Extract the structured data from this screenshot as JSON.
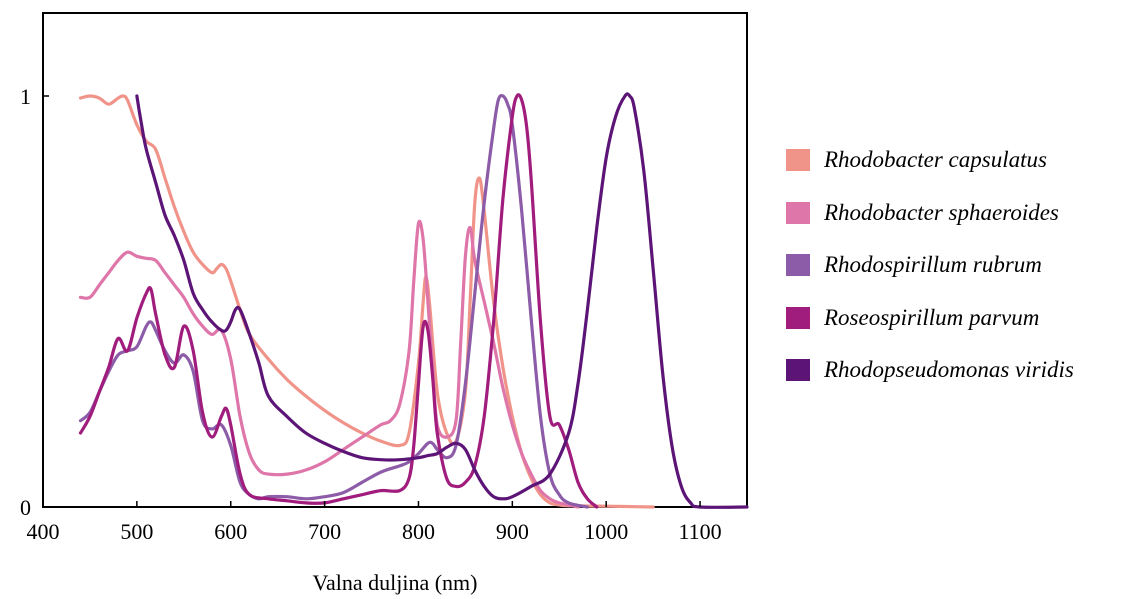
{
  "chart_data": {
    "type": "line",
    "title": "",
    "xlabel": "Valna duljina (nm)",
    "ylabel": "",
    "xlim": [
      400,
      1150
    ],
    "ylim": [
      0,
      1.2
    ],
    "xticks": [
      400,
      500,
      600,
      700,
      800,
      900,
      1000,
      1100
    ],
    "yticks": [
      0,
      1
    ],
    "ytick_labels": [
      "0",
      "1"
    ],
    "grid": false,
    "legend_position": "right",
    "series": [
      {
        "name": "Rhodobacter capsulatus",
        "color": "#f0948a",
        "x": [
          440,
          450,
          460,
          470,
          480,
          485,
          490,
          500,
          510,
          520,
          530,
          540,
          550,
          560,
          570,
          580,
          585,
          590,
          595,
          600,
          610,
          620,
          640,
          660,
          680,
          700,
          720,
          740,
          760,
          780,
          790,
          800,
          805,
          808,
          812,
          820,
          830,
          840,
          850,
          855,
          860,
          865,
          870,
          880,
          890,
          900,
          910,
          920,
          930,
          940,
          950,
          960,
          1000,
          1050
        ],
        "y": [
          0.995,
          1.0,
          0.995,
          0.98,
          0.995,
          1.0,
          0.99,
          0.93,
          0.89,
          0.87,
          0.8,
          0.73,
          0.67,
          0.62,
          0.59,
          0.57,
          0.58,
          0.59,
          0.58,
          0.55,
          0.48,
          0.42,
          0.36,
          0.31,
          0.27,
          0.235,
          0.205,
          0.18,
          0.16,
          0.15,
          0.18,
          0.35,
          0.5,
          0.56,
          0.49,
          0.28,
          0.18,
          0.16,
          0.28,
          0.5,
          0.74,
          0.8,
          0.72,
          0.5,
          0.34,
          0.22,
          0.13,
          0.07,
          0.03,
          0.01,
          0.005,
          0.003,
          0.002,
          0.0
        ]
      },
      {
        "name": "Rhodobacter sphaeroides",
        "color": "#df76aa",
        "x": [
          440,
          450,
          460,
          470,
          480,
          490,
          500,
          510,
          520,
          530,
          540,
          550,
          560,
          570,
          580,
          590,
          600,
          610,
          620,
          630,
          640,
          660,
          680,
          700,
          720,
          740,
          760,
          770,
          780,
          790,
          795,
          800,
          805,
          810,
          815,
          820,
          830,
          840,
          845,
          850,
          855,
          860,
          870,
          880,
          890,
          900,
          910,
          920,
          930,
          940,
          950,
          970
        ],
        "y": [
          0.51,
          0.51,
          0.54,
          0.57,
          0.6,
          0.62,
          0.61,
          0.605,
          0.6,
          0.57,
          0.54,
          0.51,
          0.47,
          0.44,
          0.42,
          0.43,
          0.36,
          0.22,
          0.13,
          0.09,
          0.08,
          0.08,
          0.09,
          0.11,
          0.14,
          0.17,
          0.2,
          0.21,
          0.25,
          0.38,
          0.55,
          0.69,
          0.65,
          0.5,
          0.34,
          0.2,
          0.17,
          0.21,
          0.4,
          0.61,
          0.68,
          0.6,
          0.5,
          0.4,
          0.29,
          0.2,
          0.13,
          0.08,
          0.04,
          0.02,
          0.01,
          0.0
        ]
      },
      {
        "name": "Rhodospirillum rubrum",
        "color": "#8c5ca8",
        "x": [
          440,
          450,
          460,
          470,
          480,
          490,
          500,
          510,
          515,
          520,
          530,
          540,
          550,
          560,
          570,
          580,
          590,
          600,
          610,
          620,
          630,
          640,
          660,
          680,
          700,
          720,
          740,
          760,
          780,
          790,
          800,
          810,
          815,
          820,
          830,
          840,
          850,
          860,
          870,
          880,
          885,
          890,
          895,
          900,
          910,
          920,
          930,
          940,
          950,
          960,
          980
        ],
        "y": [
          0.21,
          0.23,
          0.28,
          0.33,
          0.37,
          0.38,
          0.39,
          0.44,
          0.45,
          0.43,
          0.38,
          0.35,
          0.37,
          0.33,
          0.21,
          0.19,
          0.2,
          0.15,
          0.06,
          0.03,
          0.02,
          0.025,
          0.025,
          0.02,
          0.025,
          0.035,
          0.06,
          0.085,
          0.1,
          0.11,
          0.13,
          0.155,
          0.155,
          0.14,
          0.12,
          0.15,
          0.3,
          0.52,
          0.74,
          0.92,
          0.99,
          1.0,
          0.98,
          0.93,
          0.72,
          0.46,
          0.22,
          0.08,
          0.03,
          0.01,
          0.0
        ]
      },
      {
        "name": "Roseospirillum parvum",
        "color": "#a01c7d",
        "x": [
          440,
          450,
          460,
          470,
          480,
          490,
          500,
          510,
          515,
          520,
          530,
          540,
          550,
          560,
          570,
          580,
          590,
          595,
          600,
          610,
          620,
          640,
          660,
          680,
          700,
          720,
          740,
          760,
          780,
          790,
          795,
          800,
          805,
          810,
          815,
          820,
          830,
          840,
          850,
          860,
          870,
          880,
          890,
          900,
          905,
          910,
          915,
          920,
          930,
          940,
          950,
          960,
          970,
          980,
          990
        ],
        "y": [
          0.18,
          0.22,
          0.28,
          0.34,
          0.41,
          0.38,
          0.46,
          0.52,
          0.53,
          0.47,
          0.37,
          0.34,
          0.44,
          0.38,
          0.23,
          0.17,
          0.22,
          0.24,
          0.2,
          0.08,
          0.03,
          0.02,
          0.015,
          0.01,
          0.01,
          0.02,
          0.03,
          0.04,
          0.04,
          0.07,
          0.15,
          0.3,
          0.44,
          0.43,
          0.32,
          0.18,
          0.07,
          0.05,
          0.06,
          0.1,
          0.22,
          0.45,
          0.75,
          0.95,
          1.0,
          0.99,
          0.93,
          0.8,
          0.45,
          0.22,
          0.2,
          0.14,
          0.06,
          0.02,
          0.0
        ]
      },
      {
        "name": "Rhodopseudomonas viridis",
        "color": "#5c1577",
        "x": [
          500,
          505,
          510,
          520,
          530,
          540,
          550,
          560,
          570,
          580,
          590,
          595,
          600,
          605,
          610,
          620,
          630,
          640,
          660,
          680,
          700,
          720,
          740,
          760,
          780,
          800,
          810,
          820,
          830,
          840,
          850,
          860,
          870,
          880,
          890,
          900,
          920,
          940,
          960,
          970,
          980,
          990,
          1000,
          1010,
          1020,
          1025,
          1030,
          1040,
          1050,
          1060,
          1070,
          1080,
          1090,
          1100,
          1150
        ],
        "y": [
          1.0,
          0.93,
          0.87,
          0.79,
          0.71,
          0.66,
          0.6,
          0.52,
          0.48,
          0.45,
          0.43,
          0.43,
          0.45,
          0.48,
          0.48,
          0.42,
          0.35,
          0.27,
          0.22,
          0.18,
          0.155,
          0.135,
          0.12,
          0.115,
          0.115,
          0.12,
          0.125,
          0.13,
          0.145,
          0.155,
          0.14,
          0.09,
          0.05,
          0.025,
          0.02,
          0.025,
          0.05,
          0.08,
          0.18,
          0.3,
          0.48,
          0.68,
          0.85,
          0.95,
          1.0,
          1.0,
          0.97,
          0.82,
          0.58,
          0.33,
          0.15,
          0.05,
          0.01,
          0.0,
          0.0
        ]
      }
    ]
  }
}
